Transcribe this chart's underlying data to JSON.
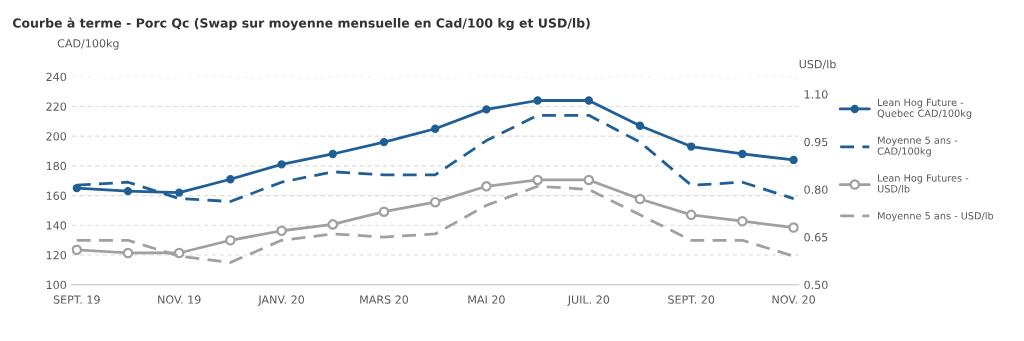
{
  "chart_data": {
    "type": "line",
    "title": "Courbe à terme - Porc Qc (Swap sur moyenne mensuelle en Cad/100 kg et USD/lb)",
    "ylabel": "CAD/100kg",
    "y2label": "USD/lb",
    "categories": [
      "SEPT. 19",
      null,
      "NOV. 19",
      null,
      "JANV. 20",
      null,
      "MARS 20",
      null,
      "MAI 20",
      null,
      "JUIL. 20",
      null,
      "SEPT. 20",
      null,
      "NOV. 20"
    ],
    "series": [
      {
        "name": "Lean Hog Future - Quebec CAD/100kg",
        "color": "#1f5f95",
        "marker": "circle",
        "line_style": "solid",
        "values": [
          165,
          163,
          162,
          171,
          181,
          188,
          196,
          205,
          218,
          224,
          224,
          207,
          193,
          188,
          184
        ]
      },
      {
        "name": "Moyenne 5 ans - CAD/100kg",
        "color": "#1f5f95",
        "marker": "none",
        "line_style": "dashed",
        "values": [
          167,
          169,
          158,
          156,
          169,
          176,
          174,
          174,
          197,
          214,
          214,
          196,
          167,
          169,
          158
        ]
      },
      {
        "name": "Lean Hog Futures - USD/lb",
        "color": "#a0a0a0",
        "marker": "circle",
        "line_style": "solid",
        "axis": "y2",
        "values": [
          0.61,
          0.6,
          0.6,
          0.64,
          0.67,
          0.69,
          0.73,
          0.76,
          0.81,
          0.83,
          0.83,
          0.77,
          0.72,
          0.7,
          0.68
        ]
      },
      {
        "name": "Moyenne 5 ans - USD/lb",
        "color": "#a0a0a0",
        "marker": "none",
        "line_style": "dashed",
        "axis": "y2",
        "values": [
          0.64,
          0.64,
          0.59,
          0.57,
          0.64,
          0.66,
          0.65,
          0.66,
          0.75,
          0.81,
          0.8,
          0.72,
          0.64,
          0.64,
          0.59
        ]
      }
    ],
    "ylim": [
      100,
      240
    ],
    "yticks": [
      100,
      120,
      140,
      160,
      180,
      200,
      220,
      240
    ],
    "y2lim": [
      0.5,
      1.155
    ],
    "y2ticks": [
      {
        "value": 0.5,
        "label": "0.50"
      },
      {
        "value": 0.65,
        "label": "0.65"
      },
      {
        "value": 0.8,
        "label": "0.80"
      },
      {
        "value": 0.95,
        "label": "0.95"
      },
      {
        "value": 1.1,
        "label": "1.10"
      }
    ],
    "grid": "y",
    "legend": "right"
  }
}
